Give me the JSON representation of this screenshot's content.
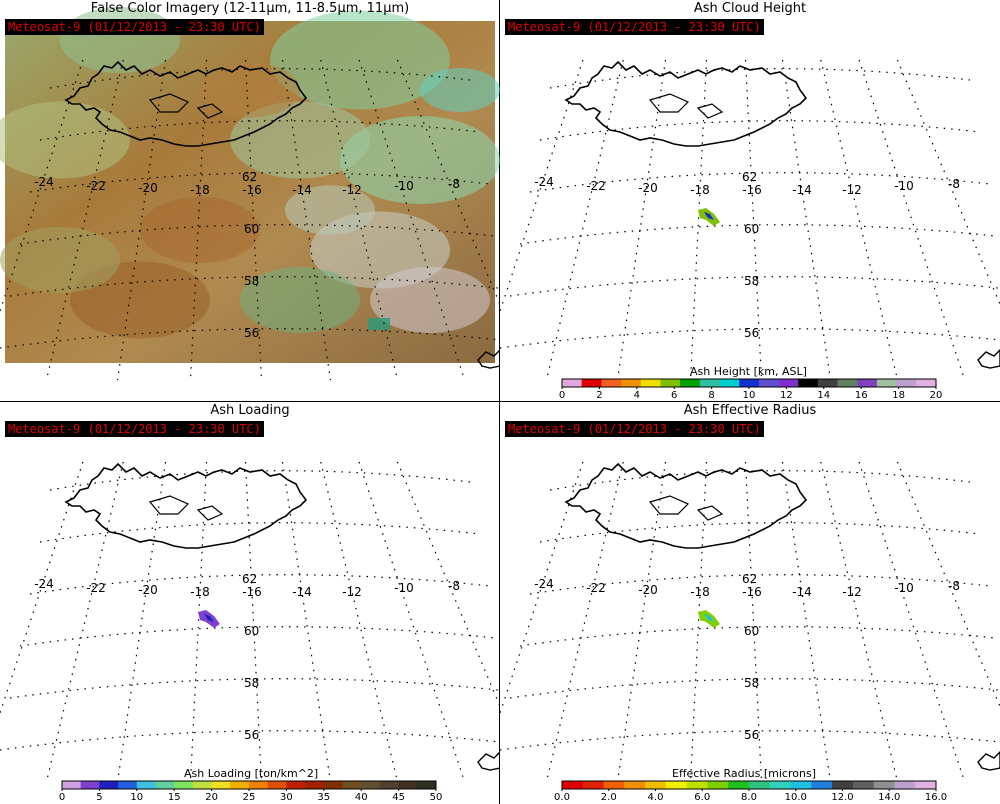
{
  "panels": [
    {
      "id": "false-color",
      "title": "False Color Imagery (12-11μm, 11-8.5μm, 11μm)",
      "satellite_label": "Meteosat-9  (01/12/2013 - 23:30 UTC)",
      "lon_labels": [
        "-24",
        "-22",
        "-20",
        "-18",
        "-16",
        "-14",
        "-12",
        "-10",
        "-8"
      ],
      "lat_labels": [
        "62",
        "60",
        "58",
        "56"
      ]
    },
    {
      "id": "ash-height",
      "title": "Ash Cloud Height",
      "satellite_label": "Meteosat-9  (01/12/2013 - 23:30 UTC)",
      "lon_labels": [
        "-24",
        "-22",
        "-20",
        "-18",
        "-16",
        "-14",
        "-12",
        "-10",
        "-8"
      ],
      "lat_labels": [
        "62",
        "60",
        "58",
        "56"
      ],
      "colorbar": {
        "title": "Ash Height [km, ASL]",
        "tick_labels": [
          "0",
          "2",
          "4",
          "6",
          "8",
          "10",
          "12",
          "14",
          "16",
          "18",
          "20"
        ],
        "colors": [
          "#e0a8e0",
          "#e00000",
          "#f06020",
          "#f09000",
          "#f0e000",
          "#80c000",
          "#00a000",
          "#30c0a0",
          "#00d0d0",
          "#1030d0",
          "#6050d0",
          "#8030d0",
          "#000000",
          "#404040",
          "#608060",
          "#8040c0",
          "#a0c0a0",
          "#c0a0d0",
          "#e0b0e0"
        ]
      }
    },
    {
      "id": "ash-loading",
      "title": "Ash Loading",
      "satellite_label": "Meteosat-9  (01/12/2013 - 23:30 UTC)",
      "lon_labels": [
        "-24",
        "-22",
        "-20",
        "-18",
        "-16",
        "-14",
        "-12",
        "-10",
        "-8"
      ],
      "lat_labels": [
        "62",
        "60",
        "58",
        "56"
      ],
      "colorbar": {
        "title": "Ash Loading [ton/km^2]",
        "tick_labels": [
          "0",
          "5",
          "10",
          "15",
          "20",
          "25",
          "30",
          "35",
          "40",
          "45",
          "50"
        ],
        "colors": [
          "#d0a0e0",
          "#8040d0",
          "#2020c0",
          "#2060e0",
          "#40c0e0",
          "#60d0a0",
          "#80e060",
          "#c0e040",
          "#f0e020",
          "#f0b000",
          "#f08000",
          "#e05000",
          "#c02000",
          "#a02000",
          "#803000",
          "#705020",
          "#605030",
          "#504030",
          "#403020",
          "#303020"
        ]
      }
    },
    {
      "id": "ash-radius",
      "title": "Ash Effective Radius",
      "satellite_label": "Meteosat-9  (01/12/2013 - 23:30 UTC)",
      "lon_labels": [
        "-24",
        "-22",
        "-20",
        "-18",
        "-16",
        "-14",
        "-12",
        "-10",
        "-8"
      ],
      "lat_labels": [
        "62",
        "60",
        "58",
        "56"
      ],
      "colorbar": {
        "title": "Effective Radius [microns]",
        "tick_labels": [
          "0.0",
          "2.0",
          "4.0",
          "6.0",
          "8.0",
          "10.0",
          "12.0",
          "14.0",
          "16.0"
        ],
        "colors": [
          "#e00000",
          "#e02000",
          "#f06000",
          "#f09000",
          "#f0c000",
          "#f0f000",
          "#c0e000",
          "#80d000",
          "#20c020",
          "#30c080",
          "#30d0c0",
          "#20c0e0",
          "#2080e0",
          "#404040",
          "#606060",
          "#909090",
          "#c0a0d0",
          "#e0b0e0"
        ]
      }
    }
  ]
}
